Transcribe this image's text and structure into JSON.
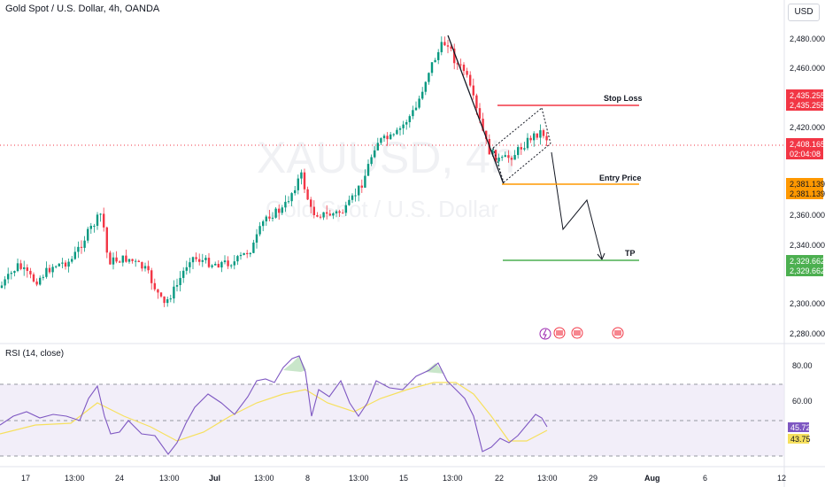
{
  "header": {
    "title": "Gold Spot / U.S. Dollar, 4h, OANDA",
    "currency": "USD",
    "watermark_symbol": "XAUUSD, 4h",
    "watermark_name": "Gold Spot / U.S. Dollar"
  },
  "price_scale": {
    "ticks": [
      "2,480.000",
      "2,460.000",
      "2,420.000",
      "2,360.000",
      "2,340.000",
      "2,300.000",
      "2,280.000"
    ]
  },
  "badges": {
    "stop_loss_1": "2,435.255",
    "stop_loss_2": "2,435.255",
    "last_price": "2,408.165",
    "countdown": "02:04:08",
    "entry_1": "2,381.139",
    "entry_2": "2,381.139",
    "tp_1": "2,329.662",
    "tp_2": "2,329.662"
  },
  "annotations": {
    "stop_loss": "Stop Loss",
    "entry_price": "Entry Price",
    "tp": "TP"
  },
  "rsi": {
    "label": "RSI (14, close)",
    "ticks": [
      "80.00",
      "60.00"
    ],
    "value": "45.72",
    "ma_value": "43.75"
  },
  "time_axis": [
    "17",
    "13:00",
    "24",
    "13:00",
    "Jul",
    "13:00",
    "8",
    "13:00",
    "15",
    "13:00",
    "22",
    "13:00",
    "29",
    "Aug",
    "6",
    "12"
  ],
  "colors": {
    "up": "#089981",
    "down": "#f23645",
    "stop_line": "#f23645",
    "entry_line": "#ff9800",
    "tp_line": "#4caf50",
    "rsi_line": "#7e57c2",
    "rsi_ma": "#f6e05e",
    "rsi_band": "#ede7f6"
  }
}
